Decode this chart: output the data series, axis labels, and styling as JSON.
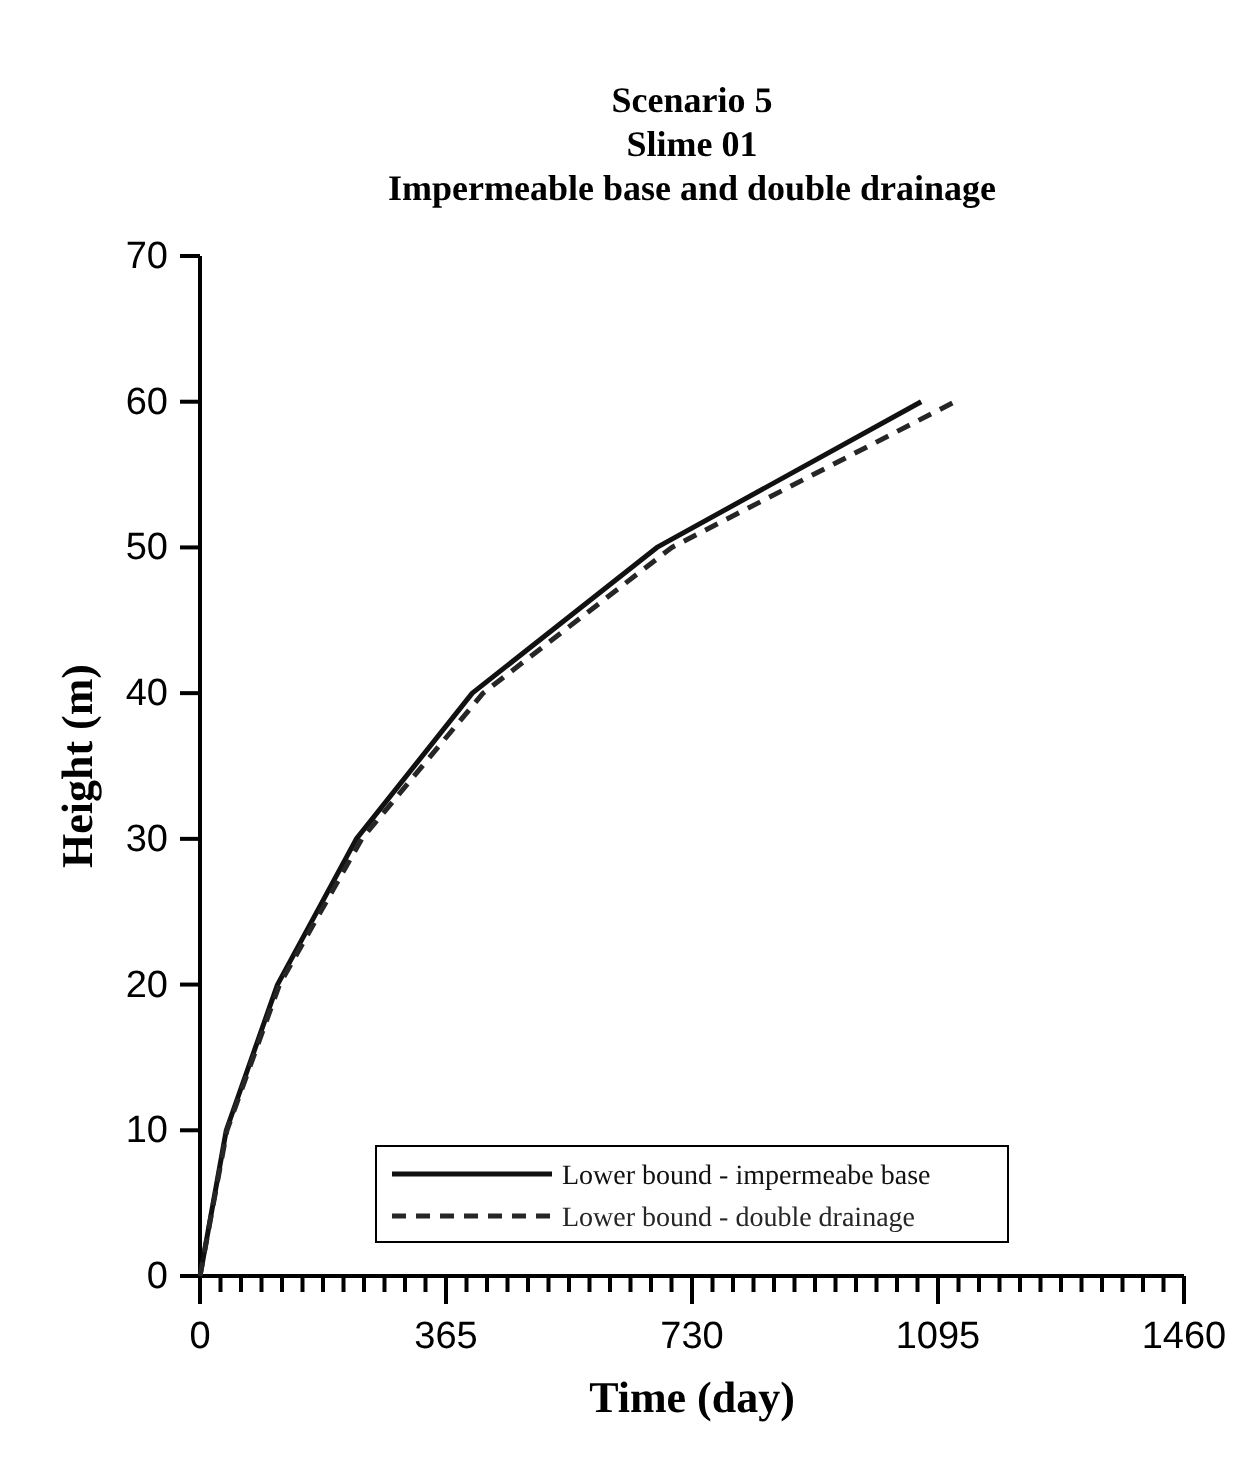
{
  "chart_data": {
    "type": "line",
    "title": "Scenario 5",
    "subtitle": "Slime 01\nImpermeable base and double drainage",
    "xlabel": "Time (day)",
    "ylabel": "Height (m)",
    "xlim": [
      0,
      1460
    ],
    "ylim": [
      0,
      70
    ],
    "xticks": [
      0,
      {
        "value": 30.42,
        "label": null
      },
      {
        "value": 60.83,
        "label": null
      },
      {
        "value": 91.25,
        "label": null
      },
      {
        "value": 121.67,
        "label": null
      },
      {
        "value": 152.08,
        "label": null
      },
      {
        "value": 182.5,
        "label": null
      },
      {
        "value": 212.92,
        "label": null
      },
      {
        "value": 243.33,
        "label": null
      },
      {
        "value": 273.75,
        "label": null
      },
      {
        "value": 304.17,
        "label": null
      },
      {
        "value": 334.58,
        "label": null
      },
      365,
      {
        "value": 395.42,
        "label": null
      },
      {
        "value": 425.83,
        "label": null
      },
      {
        "value": 456.25,
        "label": null
      },
      {
        "value": 486.67,
        "label": null
      },
      {
        "value": 517.08,
        "label": null
      },
      {
        "value": 547.5,
        "label": null
      },
      {
        "value": 577.92,
        "label": null
      },
      {
        "value": 608.33,
        "label": null
      },
      {
        "value": 638.75,
        "label": null
      },
      {
        "value": 669.17,
        "label": null
      },
      {
        "value": 699.58,
        "label": null
      },
      730,
      {
        "value": 760.42,
        "label": null
      },
      {
        "value": 790.83,
        "label": null
      },
      {
        "value": 821.25,
        "label": null
      },
      {
        "value": 851.67,
        "label": null
      },
      {
        "value": 882.08,
        "label": null
      },
      {
        "value": 912.5,
        "label": null
      },
      {
        "value": 942.92,
        "label": null
      },
      {
        "value": 973.33,
        "label": null
      },
      {
        "value": 1003.75,
        "label": null
      },
      {
        "value": 1034.17,
        "label": null
      },
      {
        "value": 1064.58,
        "label": null
      },
      1095,
      {
        "value": 1125.42,
        "label": null
      },
      {
        "value": 1155.83,
        "label": null
      },
      {
        "value": 1186.25,
        "label": null
      },
      {
        "value": 1216.67,
        "label": null
      },
      {
        "value": 1247.08,
        "label": null
      },
      {
        "value": 1277.5,
        "label": null
      },
      {
        "value": 1307.92,
        "label": null
      },
      {
        "value": 1338.33,
        "label": null
      },
      {
        "value": 1368.75,
        "label": null
      },
      {
        "value": 1399.17,
        "label": null
      },
      {
        "value": 1429.58,
        "label": null
      },
      1460
    ],
    "yticks": [
      0,
      10,
      20,
      30,
      40,
      50,
      60,
      70
    ],
    "grid": false,
    "legend": "bottom",
    "marker": "none",
    "series": [
      {
        "name": "Lower bound - impermeabe base",
        "color": "#111111",
        "line_style": "solid",
        "x": [
          0,
          39,
          115,
          232,
          404,
          678,
          1070
        ],
        "values": [
          0,
          10,
          20,
          30,
          40,
          50,
          60
        ]
      },
      {
        "name": "Lower bound - double drainage",
        "color": "#262626",
        "line_style": "dashed",
        "x": [
          0,
          40,
          118,
          240,
          420,
          700,
          1120
        ],
        "values": [
          0,
          10,
          20,
          30,
          40,
          50,
          60
        ]
      }
    ]
  }
}
